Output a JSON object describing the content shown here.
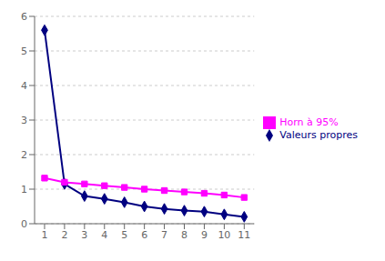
{
  "chart_data": {
    "type": "line",
    "x": [
      1,
      2,
      3,
      4,
      5,
      6,
      7,
      8,
      9,
      10,
      11
    ],
    "series": [
      {
        "name": "Valeurs propres",
        "color": "#000080",
        "marker": "diamond",
        "values": [
          5.6,
          1.15,
          0.8,
          0.72,
          0.62,
          0.5,
          0.43,
          0.38,
          0.35,
          0.27,
          0.2
        ]
      },
      {
        "name": "Horn à 95%",
        "color": "#FF00FF",
        "marker": "square",
        "values": [
          1.32,
          1.2,
          1.15,
          1.1,
          1.05,
          1.0,
          0.96,
          0.92,
          0.88,
          0.83,
          0.76
        ]
      }
    ],
    "xlim": [
      0.5,
      11.5
    ],
    "xticks": [
      1,
      2,
      3,
      4,
      5,
      6,
      7,
      8,
      9,
      10,
      11
    ],
    "ylim": [
      0,
      6
    ],
    "yticks": [
      0,
      1,
      2,
      3,
      4,
      5,
      6
    ],
    "grid": "y",
    "legend": "right"
  }
}
